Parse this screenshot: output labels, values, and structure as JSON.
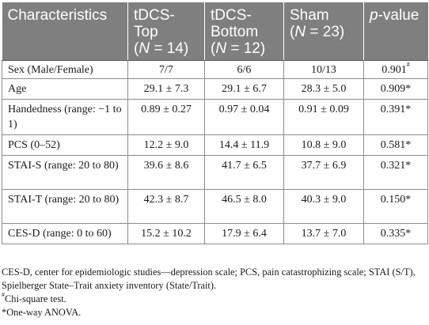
{
  "table": {
    "headers": {
      "characteristics": "Characteristics",
      "top_line1": "tDCS-",
      "top_line2": "Top",
      "top_n_prefix": "(",
      "top_n_var": "N",
      "top_n_value": " = 14)",
      "bottom_line1": "tDCS-",
      "bottom_line2": "Bottom",
      "bottom_n_prefix": "(",
      "bottom_n_var": "N",
      "bottom_n_value": " = 12)",
      "sham_line1": "Sham",
      "sham_n_prefix": "(",
      "sham_n_var": "N",
      "sham_n_value": " = 23)",
      "p_var": "p",
      "p_suffix": "-value"
    },
    "rows": [
      {
        "label": "Sex (Male/Female)",
        "top": "7/7",
        "bottom": "6/6",
        "sham": "10/13",
        "p": "0.901",
        "mark": "#"
      },
      {
        "label": "Age",
        "top": "29.1 ± 7.3",
        "bottom": "29.1 ± 6.7",
        "sham": "28.3 ± 5.0",
        "p": "0.909",
        "mark": "*"
      },
      {
        "label": "Handedness (range: −1 to 1)",
        "top": "0.89 ± 0.27",
        "bottom": "0.97 ± 0.04",
        "sham": "0.91 ± 0.09",
        "p": "0.391",
        "mark": "*"
      },
      {
        "label": "PCS (0–52)",
        "top": "12.2 ± 9.0",
        "bottom": "14.4 ± 11.9",
        "sham": "10.8 ± 9.0",
        "p": "0.581",
        "mark": "*"
      },
      {
        "label": "STAI-S (range: 20 to 80)",
        "top": "39.6 ± 8.6",
        "bottom": "41.7 ± 6.5",
        "sham": "37.7 ± 6.9",
        "p": "0.321",
        "mark": "*"
      },
      {
        "label": "STAI-T (range: 20 to 80)",
        "top": "42.3 ± 8.7",
        "bottom": "46.5 ± 8.0",
        "sham": "40.3 ± 9.0",
        "p": "0.150",
        "mark": "*"
      },
      {
        "label": "CES-D (range: 0 to 60)",
        "top": "15.2 ± 10.2",
        "bottom": "17.9 ± 6.4",
        "sham": "13.7 ± 7.0",
        "p": "0.335",
        "mark": "*"
      }
    ]
  },
  "notes": {
    "abbreviations": "CES-D, center for epidemiologic studies—depression scale; PCS, pain catastrophizing scale; STAI (S/T), Spielberger State–Trait anxiety inventory (State/Trait).",
    "chi_mark": "#",
    "chi_text": "Chi-square test.",
    "anova_mark": "*",
    "anova_text": "One-way ANOVA."
  }
}
